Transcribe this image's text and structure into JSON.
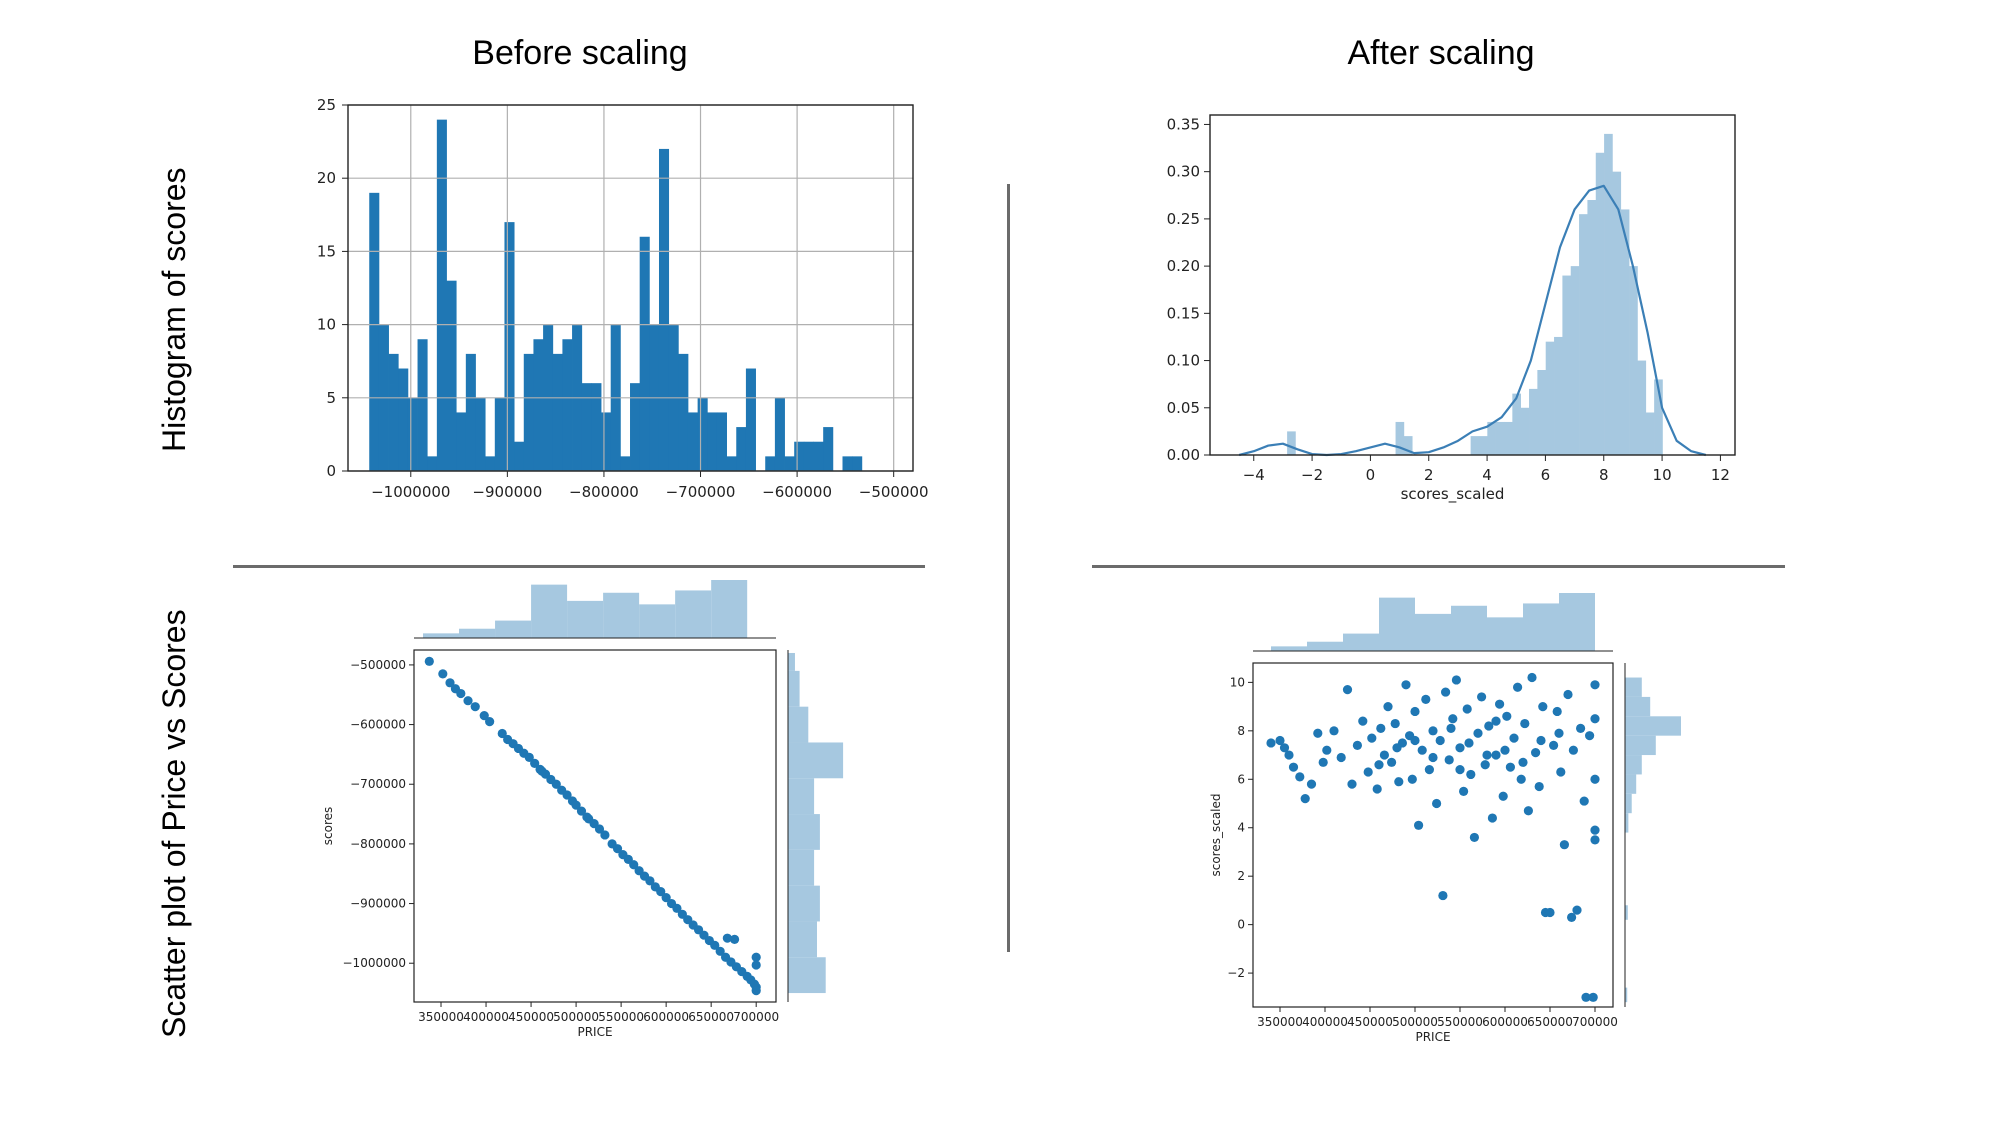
{
  "titles": {
    "before": "Before scaling",
    "after": "After scaling",
    "row_hist": "Histogram of scores",
    "row_scatter": "Scatter plot of Price vs Scores"
  },
  "colors": {
    "dark_blue": "#1f77b4",
    "light_blue": "#a6c8e0",
    "kde": "#3b7fb6"
  },
  "chart_data": [
    {
      "id": "hist_before",
      "type": "bar",
      "title": "",
      "xlabel": "",
      "ylabel": "",
      "xlim": [
        -1065000,
        -480000
      ],
      "ylim": [
        0,
        25
      ],
      "grid": true,
      "xticks": [
        -1000000,
        -900000,
        -800000,
        -700000,
        -600000,
        -500000
      ],
      "xtick_labels": [
        "−1000000",
        "−900000",
        "−800000",
        "−700000",
        "−600000",
        "−500000"
      ],
      "yticks": [
        0,
        5,
        10,
        15,
        20,
        25
      ],
      "bin_start": -1043000,
      "bin_width": 10000,
      "values": [
        19,
        10,
        8,
        7,
        5,
        9,
        1,
        24,
        13,
        4,
        8,
        5,
        1,
        5,
        17,
        2,
        8,
        9,
        10,
        8,
        9,
        10,
        6,
        6,
        4,
        10,
        1,
        6,
        16,
        10,
        22,
        10,
        8,
        4,
        5,
        4,
        4,
        1,
        3,
        7,
        0,
        1,
        5,
        1,
        2,
        2,
        2,
        3,
        0,
        1,
        1
      ]
    },
    {
      "id": "hist_after",
      "type": "bar",
      "title": "",
      "xlabel": "scores_scaled",
      "ylabel": "",
      "xlim": [
        -5.5,
        12.5
      ],
      "ylim": [
        0,
        0.36
      ],
      "grid": false,
      "xticks": [
        -4,
        -2,
        0,
        2,
        4,
        6,
        8,
        10,
        12
      ],
      "xtick_labels": [
        "−4",
        "−2",
        "0",
        "2",
        "4",
        "6",
        "8",
        "10",
        "12"
      ],
      "yticks": [
        0,
        0.05,
        0.1,
        0.15,
        0.2,
        0.25,
        0.3,
        0.35
      ],
      "ytick_labels": [
        "0.00",
        "0.05",
        "0.10",
        "0.15",
        "0.20",
        "0.25",
        "0.30",
        "0.35"
      ],
      "bin_start": -4.0,
      "bin_width": 0.286,
      "values": [
        0,
        0,
        0,
        0,
        0.025,
        0,
        0,
        0,
        0,
        0,
        0,
        0,
        0,
        0,
        0,
        0,
        0,
        0.035,
        0.02,
        0,
        0,
        0,
        0,
        0,
        0,
        0,
        0.02,
        0.02,
        0.035,
        0.035,
        0.035,
        0.065,
        0.05,
        0.07,
        0.09,
        0.12,
        0.125,
        0.19,
        0.2,
        0.255,
        0.27,
        0.32,
        0.34,
        0.3,
        0.26,
        0.2,
        0.1,
        0.045,
        0.08,
        0,
        0
      ],
      "kde": {
        "x": [
          -4.5,
          -4,
          -3.5,
          -3,
          -2.5,
          -2,
          -1.5,
          -1,
          -0.5,
          0,
          0.5,
          1,
          1.5,
          2,
          2.5,
          3,
          3.5,
          4,
          4.5,
          5,
          5.5,
          6,
          6.5,
          7,
          7.5,
          8,
          8.5,
          9,
          9.5,
          10,
          10.5,
          11,
          11.5
        ],
        "y": [
          0,
          0.004,
          0.01,
          0.012,
          0.006,
          0.001,
          0,
          0.001,
          0.004,
          0.008,
          0.012,
          0.008,
          0.002,
          0.003,
          0.008,
          0.015,
          0.025,
          0.03,
          0.04,
          0.06,
          0.1,
          0.16,
          0.22,
          0.26,
          0.28,
          0.285,
          0.26,
          0.2,
          0.13,
          0.05,
          0.015,
          0.004,
          0
        ]
      }
    },
    {
      "id": "scatter_before",
      "type": "scatter",
      "title": "",
      "xlabel": "PRICE",
      "ylabel": "scores",
      "xlim": [
        320000,
        722000
      ],
      "ylim": [
        -1065000,
        -475000
      ],
      "xticks": [
        350000,
        400000,
        450000,
        500000,
        550000,
        600000,
        650000,
        700000
      ],
      "yticks": [
        -500000,
        -600000,
        -700000,
        -800000,
        -900000,
        -1000000
      ],
      "ytick_labels": [
        "−500000",
        "−600000",
        "−700000",
        "−800000",
        "−900000",
        "−1000000"
      ],
      "points": [
        [
          337000,
          -494000
        ],
        [
          352000,
          -515000
        ],
        [
          360000,
          -530000
        ],
        [
          366000,
          -540000
        ],
        [
          372000,
          -548000
        ],
        [
          380000,
          -560000
        ],
        [
          388000,
          -570000
        ],
        [
          398000,
          -585000
        ],
        [
          404000,
          -595000
        ],
        [
          418000,
          -615000
        ],
        [
          424000,
          -625000
        ],
        [
          430000,
          -632000
        ],
        [
          436000,
          -640000
        ],
        [
          442000,
          -648000
        ],
        [
          448000,
          -655000
        ],
        [
          454000,
          -665000
        ],
        [
          460000,
          -675000
        ],
        [
          466000,
          -683000
        ],
        [
          472000,
          -692000
        ],
        [
          478000,
          -700000
        ],
        [
          484000,
          -710000
        ],
        [
          490000,
          -718000
        ],
        [
          496000,
          -728000
        ],
        [
          500000,
          -735000
        ],
        [
          506000,
          -745000
        ],
        [
          514000,
          -758000
        ],
        [
          520000,
          -766000
        ],
        [
          526000,
          -775000
        ],
        [
          532000,
          -785000
        ],
        [
          540000,
          -800000
        ],
        [
          546000,
          -808000
        ],
        [
          552000,
          -818000
        ],
        [
          558000,
          -826000
        ],
        [
          564000,
          -835000
        ],
        [
          570000,
          -845000
        ],
        [
          576000,
          -854000
        ],
        [
          582000,
          -862000
        ],
        [
          588000,
          -872000
        ],
        [
          594000,
          -880000
        ],
        [
          600000,
          -890000
        ],
        [
          606000,
          -900000
        ],
        [
          612000,
          -908000
        ],
        [
          618000,
          -918000
        ],
        [
          624000,
          -927000
        ],
        [
          630000,
          -936000
        ],
        [
          636000,
          -944000
        ],
        [
          642000,
          -953000
        ],
        [
          648000,
          -962000
        ],
        [
          654000,
          -970000
        ],
        [
          660000,
          -980000
        ],
        [
          666000,
          -990000
        ],
        [
          672000,
          -998000
        ],
        [
          678000,
          -1006000
        ],
        [
          684000,
          -1014000
        ],
        [
          690000,
          -1022000
        ],
        [
          694000,
          -1028000
        ],
        [
          698000,
          -1035000
        ],
        [
          700000,
          -1040000
        ],
        [
          700000,
          -1046000
        ],
        [
          700000,
          -990000
        ],
        [
          700000,
          -1003000
        ],
        [
          676000,
          -960000
        ],
        [
          668000,
          -958000
        ],
        [
          512000,
          -755000
        ],
        [
          462000,
          -678000
        ]
      ],
      "top_hist": {
        "bins": [
          [
            330000,
            370000,
            0.08
          ],
          [
            370000,
            410000,
            0.16
          ],
          [
            410000,
            450000,
            0.3
          ],
          [
            450000,
            490000,
            0.92
          ],
          [
            490000,
            530000,
            0.64
          ],
          [
            530000,
            570000,
            0.78
          ],
          [
            570000,
            610000,
            0.58
          ],
          [
            610000,
            650000,
            0.82
          ],
          [
            650000,
            690000,
            1.0
          ]
        ]
      },
      "right_hist": {
        "bins": [
          [
            -1050000,
            -990000,
            0.65
          ],
          [
            -990000,
            -930000,
            0.5
          ],
          [
            -930000,
            -870000,
            0.55
          ],
          [
            -870000,
            -810000,
            0.45
          ],
          [
            -810000,
            -750000,
            0.55
          ],
          [
            -750000,
            -690000,
            0.45
          ],
          [
            -690000,
            -630000,
            0.95
          ],
          [
            -630000,
            -570000,
            0.35
          ],
          [
            -570000,
            -510000,
            0.2
          ],
          [
            -510000,
            -480000,
            0.12
          ]
        ]
      }
    },
    {
      "id": "scatter_after",
      "type": "scatter",
      "title": "",
      "xlabel": "PRICE",
      "ylabel": "scores_scaled",
      "xlim": [
        320000,
        720000
      ],
      "ylim": [
        -3.4,
        10.8
      ],
      "xticks": [
        350000,
        400000,
        450000,
        500000,
        550000,
        600000,
        650000,
        700000
      ],
      "yticks": [
        10,
        8,
        6,
        4,
        2,
        0,
        -2
      ],
      "ytick_labels": [
        "10",
        "8",
        "6",
        "4",
        "2",
        "0",
        "−2"
      ],
      "points": [
        [
          340000,
          7.5
        ],
        [
          350000,
          7.6
        ],
        [
          355000,
          7.3
        ],
        [
          360000,
          7.0
        ],
        [
          365000,
          6.5
        ],
        [
          372000,
          6.1
        ],
        [
          378000,
          5.2
        ],
        [
          385000,
          5.8
        ],
        [
          392000,
          7.9
        ],
        [
          398000,
          6.7
        ],
        [
          402000,
          7.2
        ],
        [
          410000,
          8.0
        ],
        [
          418000,
          6.9
        ],
        [
          425000,
          9.7
        ],
        [
          430000,
          5.8
        ],
        [
          436000,
          7.4
        ],
        [
          442000,
          8.4
        ],
        [
          448000,
          6.3
        ],
        [
          452000,
          7.7
        ],
        [
          458000,
          5.6
        ],
        [
          462000,
          8.1
        ],
        [
          466000,
          7.0
        ],
        [
          470000,
          9.0
        ],
        [
          474000,
          6.7
        ],
        [
          478000,
          8.3
        ],
        [
          482000,
          5.9
        ],
        [
          486000,
          7.5
        ],
        [
          490000,
          9.9
        ],
        [
          494000,
          7.8
        ],
        [
          497000,
          6.0
        ],
        [
          500000,
          8.8
        ],
        [
          504000,
          4.1
        ],
        [
          508000,
          7.2
        ],
        [
          512000,
          9.3
        ],
        [
          516000,
          6.4
        ],
        [
          520000,
          8.0
        ],
        [
          524000,
          5.0
        ],
        [
          528000,
          7.6
        ],
        [
          531000,
          1.2
        ],
        [
          534000,
          9.6
        ],
        [
          538000,
          6.8
        ],
        [
          542000,
          8.5
        ],
        [
          546000,
          10.1
        ],
        [
          550000,
          7.3
        ],
        [
          554000,
          5.5
        ],
        [
          558000,
          8.9
        ],
        [
          562000,
          6.2
        ],
        [
          566000,
          3.6
        ],
        [
          570000,
          7.9
        ],
        [
          574000,
          9.4
        ],
        [
          578000,
          6.6
        ],
        [
          582000,
          8.2
        ],
        [
          586000,
          4.4
        ],
        [
          590000,
          7.0
        ],
        [
          594000,
          9.1
        ],
        [
          598000,
          5.3
        ],
        [
          602000,
          8.6
        ],
        [
          606000,
          6.5
        ],
        [
          610000,
          7.7
        ],
        [
          614000,
          9.8
        ],
        [
          618000,
          6.0
        ],
        [
          622000,
          8.3
        ],
        [
          626000,
          4.7
        ],
        [
          630000,
          10.2
        ],
        [
          634000,
          7.1
        ],
        [
          638000,
          5.7
        ],
        [
          642000,
          9.0
        ],
        [
          645000,
          0.5
        ],
        [
          650000,
          0.5
        ],
        [
          654000,
          7.4
        ],
        [
          658000,
          8.8
        ],
        [
          662000,
          6.3
        ],
        [
          666000,
          3.3
        ],
        [
          670000,
          9.5
        ],
        [
          674000,
          0.3
        ],
        [
          676000,
          7.2
        ],
        [
          680000,
          0.6
        ],
        [
          684000,
          8.1
        ],
        [
          688000,
          5.1
        ],
        [
          690000,
          -3.0
        ],
        [
          694000,
          7.8
        ],
        [
          698000,
          -3.0
        ],
        [
          700000,
          9.9
        ],
        [
          700000,
          3.5
        ],
        [
          700000,
          6.0
        ],
        [
          700000,
          8.5
        ],
        [
          700000,
          3.9
        ],
        [
          480000,
          7.3
        ],
        [
          520000,
          6.9
        ],
        [
          560000,
          7.5
        ],
        [
          600000,
          7.2
        ],
        [
          640000,
          7.6
        ],
        [
          460000,
          6.6
        ],
        [
          540000,
          8.1
        ],
        [
          580000,
          7.0
        ],
        [
          620000,
          6.7
        ],
        [
          660000,
          7.9
        ],
        [
          500000,
          7.6
        ],
        [
          590000,
          8.4
        ],
        [
          550000,
          6.4
        ]
      ],
      "top_hist": {
        "bins": [
          [
            340000,
            380000,
            0.08
          ],
          [
            380000,
            420000,
            0.16
          ],
          [
            420000,
            460000,
            0.3
          ],
          [
            460000,
            500000,
            0.92
          ],
          [
            500000,
            540000,
            0.64
          ],
          [
            540000,
            580000,
            0.78
          ],
          [
            580000,
            620000,
            0.58
          ],
          [
            620000,
            660000,
            0.82
          ],
          [
            660000,
            700000,
            1.0
          ]
        ]
      },
      "right_hist": {
        "bins": [
          [
            9.4,
            10.2,
            0.3
          ],
          [
            8.6,
            9.4,
            0.45
          ],
          [
            7.8,
            8.6,
            1.0
          ],
          [
            7.0,
            7.8,
            0.55
          ],
          [
            6.2,
            7.0,
            0.3
          ],
          [
            5.4,
            6.2,
            0.2
          ],
          [
            4.6,
            5.4,
            0.12
          ],
          [
            3.8,
            4.6,
            0.06
          ],
          [
            0.2,
            0.8,
            0.05
          ],
          [
            -3.2,
            -2.6,
            0.04
          ]
        ]
      }
    }
  ]
}
